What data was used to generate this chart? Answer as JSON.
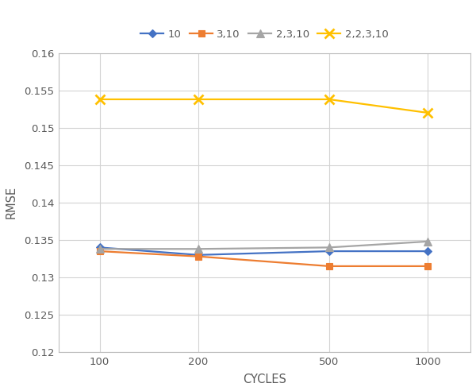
{
  "x": [
    100,
    200,
    500,
    1000
  ],
  "series": [
    {
      "label": "10",
      "color": "#4472C4",
      "marker": "D",
      "values": [
        0.134,
        0.133,
        0.1335,
        0.1335
      ]
    },
    {
      "label": "3,10",
      "color": "#ED7D31",
      "marker": "s",
      "values": [
        0.1335,
        0.1328,
        0.1315,
        0.1315
      ]
    },
    {
      "label": "2,3,10",
      "color": "#A5A5A5",
      "marker": "^",
      "values": [
        0.1338,
        0.1338,
        0.134,
        0.1348
      ]
    },
    {
      "label": "2,2,3,10",
      "color": "#FFC000",
      "marker": "x",
      "values": [
        0.1538,
        0.1538,
        0.1538,
        0.152
      ]
    }
  ],
  "xlabel": "CYCLES",
  "ylabel": "RMSE",
  "ylim": [
    0.12,
    0.16
  ],
  "yticks": [
    0.12,
    0.125,
    0.13,
    0.135,
    0.14,
    0.145,
    0.15,
    0.155,
    0.16
  ],
  "xticks": [
    100,
    200,
    500,
    1000
  ],
  "background_color": "#FFFFFF",
  "grid_color": "#D3D3D3",
  "tick_label_color": "#595959",
  "axis_label_color": "#595959",
  "spine_color": "#BFBFBF",
  "legend_ncol": 4,
  "tick_fontsize": 9.5,
  "label_fontsize": 10.5
}
